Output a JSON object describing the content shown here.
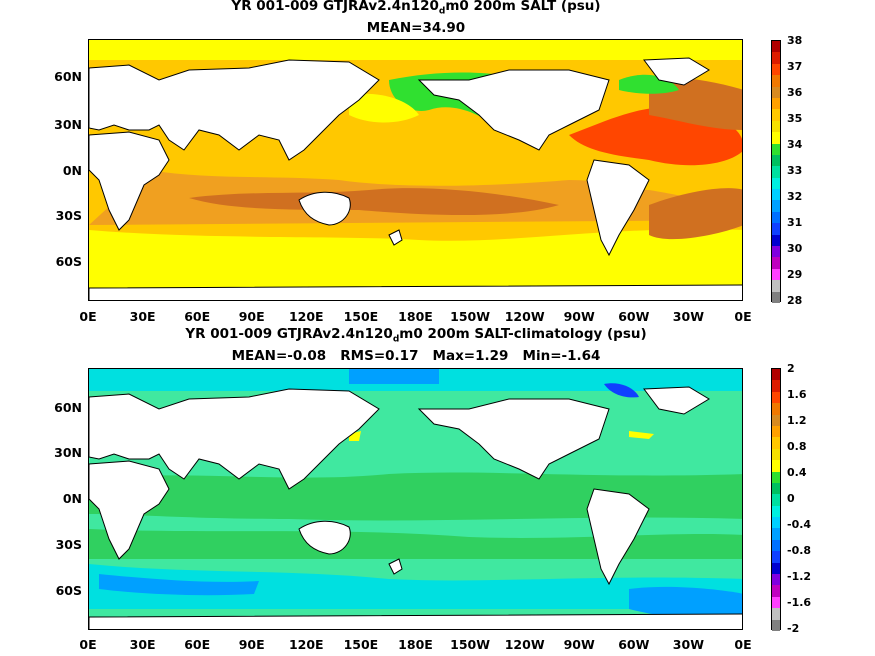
{
  "panel_top": {
    "title_pre": "YR 001-009 GTJRAv2.4n120",
    "title_sub": "d",
    "title_post": "m0 200m SALT (psu)",
    "stats": "MEAN=34.90",
    "colorbar_labels": [
      "38",
      "37",
      "36",
      "35",
      "34",
      "33",
      "32",
      "31",
      "30",
      "29",
      "28"
    ],
    "colorbar_colors": [
      "#b00000",
      "#dd1c00",
      "#ff4600",
      "#f07800",
      "#d88a20",
      "#ffa000",
      "#ffc800",
      "#f5e000",
      "#ffff00",
      "#30e030",
      "#00c060",
      "#00e0a0",
      "#00f0e0",
      "#00d0ff",
      "#00a0ff",
      "#0070ff",
      "#1040ff",
      "#0000d0",
      "#8000e0",
      "#c000c0",
      "#ff40ff",
      "#c0c0c0",
      "#808080"
    ]
  },
  "panel_bottom": {
    "title_pre": "YR 001-009 GTJRAv2.4n120",
    "title_sub": "d",
    "title_post": "m0 200m SALT-climatology (psu)",
    "stats": "MEAN=-0.08   RMS=0.17   Max=1.29   Min=-1.64",
    "colorbar_labels": [
      "2",
      "1.6",
      "1.2",
      "0.8",
      "0.4",
      "0",
      "-0.4",
      "-0.8",
      "-1.2",
      "-1.6",
      "-2"
    ],
    "colorbar_colors": [
      "#b00000",
      "#dd1c00",
      "#ff4600",
      "#f07800",
      "#d88a20",
      "#ffa000",
      "#ffc800",
      "#f5e000",
      "#ffff00",
      "#30e030",
      "#00c060",
      "#00e0a0",
      "#00f0e0",
      "#00d0ff",
      "#00a0ff",
      "#0070ff",
      "#1040ff",
      "#0000d0",
      "#8000e0",
      "#c000c0",
      "#ff40ff",
      "#c0c0c0",
      "#808080"
    ]
  },
  "axes": {
    "y_labels": [
      "60N",
      "30N",
      "0N",
      "30S",
      "60S"
    ],
    "x_labels": [
      "0E",
      "30E",
      "60E",
      "90E",
      "120E",
      "150E",
      "180E",
      "150W",
      "120W",
      "90W",
      "60W",
      "30W",
      "0E"
    ]
  },
  "colors": {
    "land": "#ffffff",
    "coast": "#000000",
    "sal_base": "#ffc800",
    "sal_high": "#ff4600",
    "sal_mid": "#f0a020",
    "sal_deep": "#d07020",
    "sal_low_yellow": "#ffff00",
    "sal_green": "#30e030",
    "sal_red": "#b00000",
    "anom_base": "#40e8a0",
    "anom_green": "#30d060",
    "anom_cyan": "#00e0e0",
    "anom_blue": "#00a0ff",
    "anom_dblue": "#1040ff",
    "anom_yellow": "#ffff00"
  }
}
